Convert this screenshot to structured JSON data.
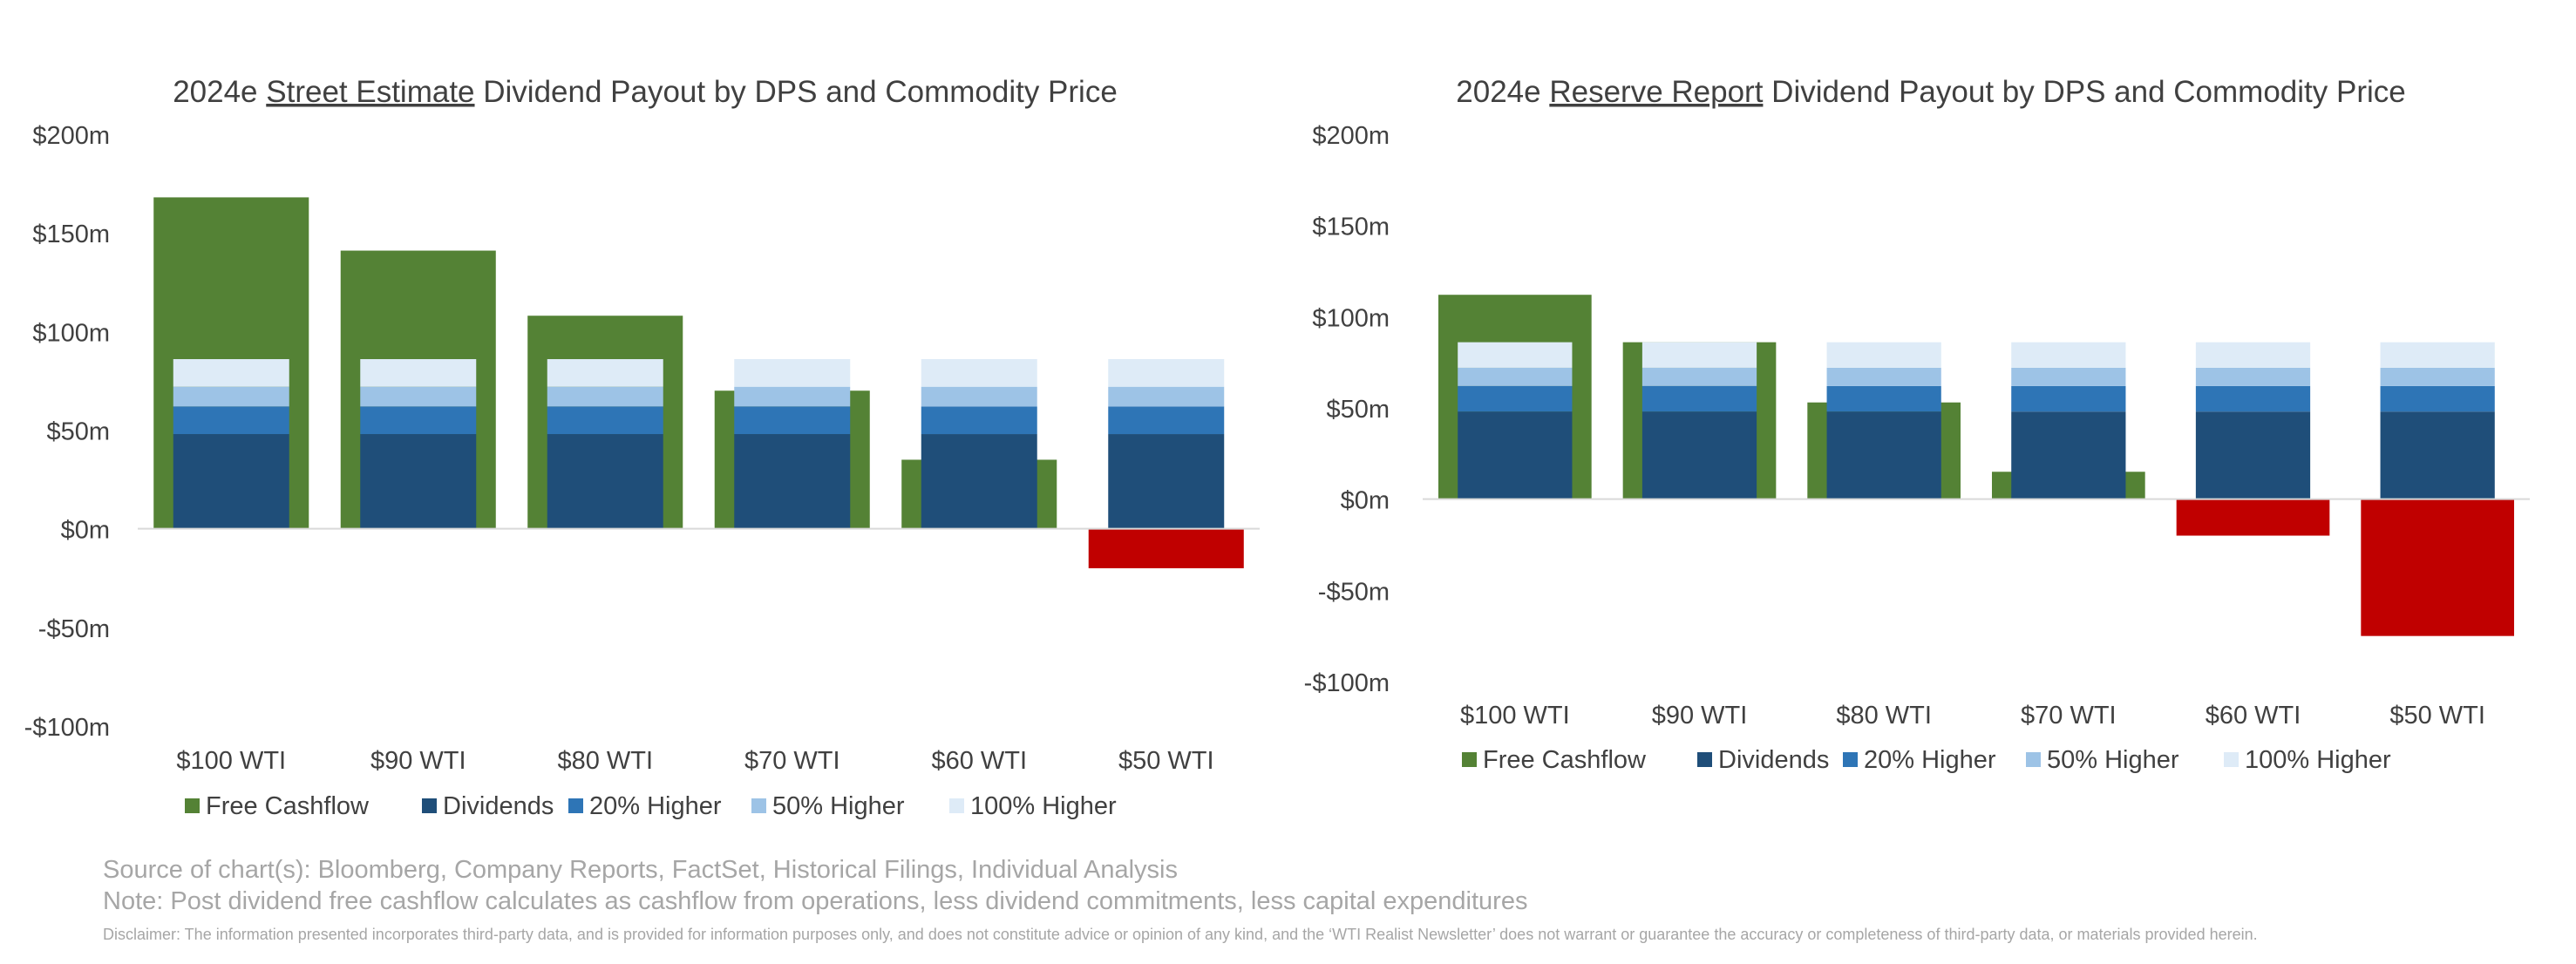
{
  "chart_data": [
    {
      "type": "bar",
      "title_prefix": "2024e ",
      "title_underlined": "Street Estimate",
      "title_suffix": " Dividend Payout by DPS and Commodity Price",
      "categories": [
        "$100 WTI",
        "$90 WTI",
        "$80 WTI",
        "$70 WTI",
        "$60 WTI",
        "$50 WTI"
      ],
      "ylim": [
        -100,
        200
      ],
      "yticks": [
        200,
        150,
        100,
        50,
        0,
        -50,
        -100
      ],
      "ytick_labels": [
        "$200m",
        "$150m",
        "$100m",
        "$50m",
        "$0m",
        "-$50m",
        "-$100m"
      ],
      "free_cashflow": [
        168,
        141,
        108,
        70,
        35,
        -20
      ],
      "dividend_stack": {
        "Dividends": 48,
        "20% Higher": 14,
        "50% Higher": 10,
        "100% Higher": 14
      },
      "legend": [
        "Free Cashflow",
        "Dividends",
        "20% Higher",
        "50% Higher",
        "100% Higher"
      ],
      "legend_position": "bottom"
    },
    {
      "type": "bar",
      "title_prefix": "2024e ",
      "title_underlined": "Reserve Report",
      "title_suffix": " Dividend Payout by DPS and Commodity Price",
      "categories": [
        "$100 WTI",
        "$90 WTI",
        "$80 WTI",
        "$70 WTI",
        "$60 WTI",
        "$50 WTI"
      ],
      "ylim": [
        -100,
        200
      ],
      "yticks": [
        200,
        150,
        100,
        50,
        0,
        -50,
        -100
      ],
      "ytick_labels": [
        "$200m",
        "$150m",
        "$100m",
        "$50m",
        "$0m",
        "-$50m",
        "-$100m"
      ],
      "free_cashflow": [
        112,
        86,
        53,
        15,
        -20,
        -75
      ],
      "dividend_stack": {
        "Dividends": 48,
        "20% Higher": 14,
        "50% Higher": 10,
        "100% Higher": 14
      },
      "legend": [
        "Free Cashflow",
        "Dividends",
        "20% Higher",
        "50% Higher",
        "100% Higher"
      ],
      "legend_position": "bottom"
    }
  ],
  "colors": {
    "free_cashflow_positive": "#548235",
    "free_cashflow_negative": "#c00000",
    "Dividends": "#1f4e79",
    "20% Higher": "#2e75b6",
    "50% Higher": "#9dc3e6",
    "100% Higher": "#deebf7",
    "axis": "#d9d9d9",
    "text": "#404040"
  },
  "footer": {
    "source": "Source of chart(s): Bloomberg, Company Reports, FactSet, Historical Filings, Individual Analysis",
    "note": "Note: Post dividend free cashflow calculates as cashflow from operations, less dividend commitments, less capital expenditures",
    "disclaimer": "Disclaimer: The information presented incorporates third-party data, and is provided for information purposes only, and does not constitute advice or opinion of any kind, and the ‘WTI Realist Newsletter’ does not warrant or guarantee the accuracy or completeness of third-party data, or materials provided herein."
  }
}
